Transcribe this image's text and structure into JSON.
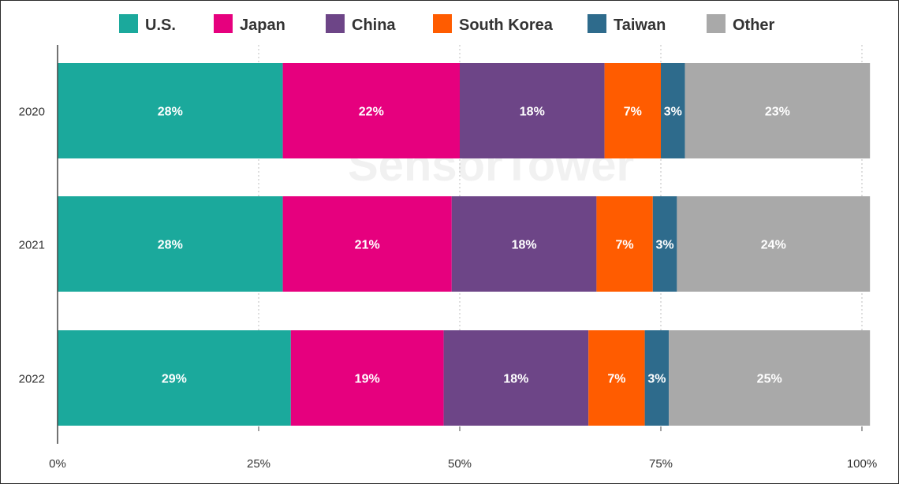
{
  "chart_data": {
    "type": "bar",
    "orientation": "horizontal",
    "stacked": true,
    "categories": [
      "2020",
      "2021",
      "2022"
    ],
    "series": [
      {
        "name": "U.S.",
        "color": "#1BA99C",
        "values": [
          28,
          28,
          29
        ],
        "labels": [
          "28%",
          "28%",
          "29%"
        ]
      },
      {
        "name": "Japan",
        "color": "#E6007E",
        "values": [
          22,
          21,
          19
        ],
        "labels": [
          "22%",
          "21%",
          "19%"
        ]
      },
      {
        "name": "China",
        "color": "#6D4587",
        "values": [
          18,
          18,
          18
        ],
        "labels": [
          "18%",
          "18%",
          "18%"
        ]
      },
      {
        "name": "South Korea",
        "color": "#FF5C00",
        "values": [
          7,
          7,
          7
        ],
        "labels": [
          "7%",
          "7%",
          "7%"
        ]
      },
      {
        "name": "Taiwan",
        "color": "#2E6B8C",
        "values": [
          3,
          3,
          3
        ],
        "labels": [
          "3%",
          "3%",
          "3%"
        ]
      },
      {
        "name": "Other",
        "color": "#A9A9A9",
        "values": [
          23,
          24,
          25
        ],
        "labels": [
          "23%",
          "24%",
          "25%"
        ]
      }
    ],
    "xlim": [
      0,
      100
    ],
    "xticks": [
      "0%",
      "25%",
      "50%",
      "75%",
      "100%"
    ],
    "grid": true,
    "legend_position": "top"
  },
  "watermark": "SensorTower"
}
